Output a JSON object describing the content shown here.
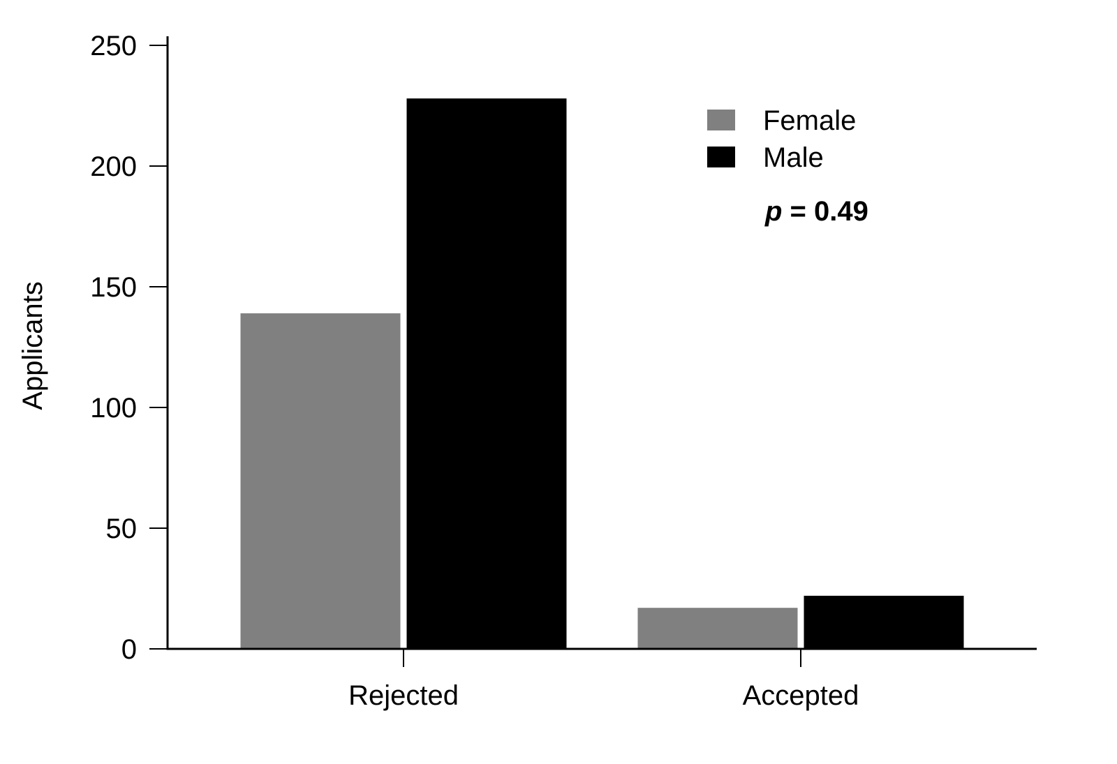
{
  "chart_data": {
    "type": "bar",
    "categories": [
      "Rejected",
      "Accepted"
    ],
    "series": [
      {
        "name": "Female",
        "values": [
          139,
          17
        ],
        "color": "#808080"
      },
      {
        "name": "Male",
        "values": [
          228,
          22
        ],
        "color": "#000000"
      }
    ],
    "ylabel": "Applicants",
    "xlabel": "",
    "ylim": [
      0,
      250
    ],
    "yticks": [
      0,
      50,
      100,
      150,
      200,
      250
    ],
    "grid": false,
    "legend_position": "top-right",
    "annotation": {
      "italic": "p",
      "rest": " = 0.49"
    }
  }
}
